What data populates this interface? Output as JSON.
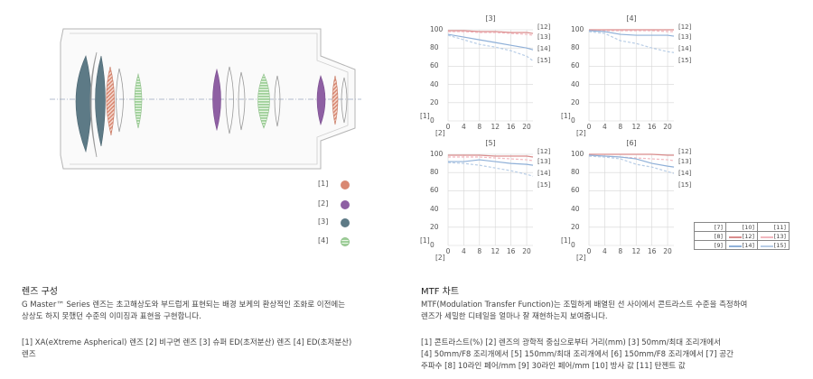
{
  "lens_legend": [
    {
      "label": "[1]",
      "color": "#d98872",
      "icon": "xa-element-swatch"
    },
    {
      "label": "[2]",
      "color": "#8e5fa3",
      "icon": "aspherical-element-swatch"
    },
    {
      "label": "[3]",
      "color": "#5d7a86",
      "icon": "super-ed-element-swatch"
    },
    {
      "label": "[4]",
      "color": "#9fd09a",
      "icon": "ed-element-swatch"
    }
  ],
  "mtf": {
    "y_tick_top": "100",
    "y_ticks": [
      "80",
      "60",
      "40",
      "20",
      "0"
    ],
    "x_ticks": [
      "0",
      "4",
      "8",
      "12",
      "16",
      "20"
    ],
    "y_axis_label": "[1]",
    "x_axis_label": "[2]"
  },
  "chart_data": [
    {
      "type": "line",
      "title": "[3]",
      "x": [
        0,
        4,
        8,
        12,
        16,
        20,
        21.6
      ],
      "xlim": [
        0,
        21.6
      ],
      "ylim": [
        0,
        100
      ],
      "series": [
        {
          "name": "[12]",
          "color": "#d98c8c",
          "dash": "",
          "values": [
            99,
            99,
            98,
            98,
            97,
            97,
            96
          ]
        },
        {
          "name": "[13]",
          "color": "#f2b8bf",
          "dash": "3,2",
          "values": [
            98,
            98,
            97,
            97,
            96,
            95,
            94
          ]
        },
        {
          "name": "[14]",
          "color": "#8fb0d8",
          "dash": "",
          "values": [
            95,
            92,
            89,
            86,
            83,
            80,
            78
          ]
        },
        {
          "name": "[15]",
          "color": "#b8cde6",
          "dash": "3,2",
          "values": [
            94,
            89,
            84,
            81,
            77,
            71,
            66
          ]
        }
      ]
    },
    {
      "type": "line",
      "title": "[4]",
      "x": [
        0,
        4,
        8,
        12,
        16,
        20,
        21.6
      ],
      "xlim": [
        0,
        21.6
      ],
      "ylim": [
        0,
        100
      ],
      "series": [
        {
          "name": "[12]",
          "color": "#d98c8c",
          "dash": "",
          "values": [
            100,
            100,
            100,
            100,
            100,
            100,
            100
          ]
        },
        {
          "name": "[13]",
          "color": "#f2b8bf",
          "dash": "3,2",
          "values": [
            99,
            99,
            99,
            99,
            99,
            98,
            98
          ]
        },
        {
          "name": "[14]",
          "color": "#8fb0d8",
          "dash": "",
          "values": [
            99,
            98,
            95,
            94,
            94,
            94,
            93
          ]
        },
        {
          "name": "[15]",
          "color": "#b8cde6",
          "dash": "3,2",
          "values": [
            98,
            96,
            88,
            85,
            80,
            76,
            75
          ]
        }
      ]
    },
    {
      "type": "line",
      "title": "[5]",
      "x": [
        0,
        4,
        8,
        12,
        16,
        20,
        21.6
      ],
      "xlim": [
        0,
        21.6
      ],
      "ylim": [
        0,
        100
      ],
      "series": [
        {
          "name": "[12]",
          "color": "#d98c8c",
          "dash": "",
          "values": [
            99,
            99,
            99,
            98,
            98,
            98,
            97
          ]
        },
        {
          "name": "[13]",
          "color": "#f2b8bf",
          "dash": "3,2",
          "values": [
            97,
            97,
            97,
            96,
            95,
            94,
            93
          ]
        },
        {
          "name": "[14]",
          "color": "#8fb0d8",
          "dash": "",
          "values": [
            92,
            92,
            94,
            92,
            90,
            89,
            88
          ]
        },
        {
          "name": "[15]",
          "color": "#b8cde6",
          "dash": "3,2",
          "values": [
            91,
            90,
            88,
            85,
            82,
            78,
            76
          ]
        }
      ]
    },
    {
      "type": "line",
      "title": "[6]",
      "x": [
        0,
        4,
        8,
        12,
        16,
        20,
        21.6
      ],
      "xlim": [
        0,
        21.6
      ],
      "ylim": [
        0,
        100
      ],
      "series": [
        {
          "name": "[12]",
          "color": "#d98c8c",
          "dash": "",
          "values": [
            100,
            100,
            100,
            100,
            100,
            99,
            99
          ]
        },
        {
          "name": "[13]",
          "color": "#f2b8bf",
          "dash": "3,2",
          "values": [
            98,
            98,
            97,
            96,
            95,
            94,
            93
          ]
        },
        {
          "name": "[14]",
          "color": "#8fb0d8",
          "dash": "",
          "values": [
            99,
            98,
            97,
            95,
            90,
            87,
            86
          ]
        },
        {
          "name": "[15]",
          "color": "#b8cde6",
          "dash": "3,2",
          "values": [
            98,
            97,
            95,
            89,
            86,
            81,
            79
          ]
        }
      ]
    }
  ],
  "mtf_legend": {
    "header": [
      "[7]",
      "[10]",
      "[11]"
    ],
    "row_8": {
      "label": "[8]",
      "sharp": "[12]",
      "dash": "[13]",
      "sharp_color": "#d98c8c",
      "dash_color": "#f2b8bf"
    },
    "row_9": {
      "label": "[9]",
      "sharp": "[14]",
      "dash": "[15]",
      "sharp_color": "#8fb0d8",
      "dash_color": "#b8cde6"
    }
  },
  "lens_section": {
    "title": "렌즈 구성",
    "description_line1": "G Master™ Series 렌즈는 초고해상도와 부드럽게 표현되는 배경 보케의 환상적인 조화로 이전에는",
    "description_line2": "상상도 하지 못했던 수준의 이미징과 표현을 구현합니다.",
    "legend_line1": "[1] XA(eXtreme Aspherical) 렌즈  [2] 비구면 렌즈  [3] 슈퍼 ED(초저분산) 렌즈  [4] ED(초저분산)",
    "legend_line2": "렌즈"
  },
  "mtf_section": {
    "title": "MTF 차트",
    "description_line1": "MTF(Modulation Transfer Function)는 조밀하게 배열된 선 사이에서 콘트라스트 수준을 측정하여",
    "description_line2": "렌즈가 세밀한 디테일을 얼마나 잘 재현하는지 보여줍니다.",
    "legend_line1": "[1] 콘트라스트(%)  [2] 렌즈의 광학적 중심으로부터 거리(mm)  [3] 50mm/최대 조리개에서",
    "legend_line2": "[4] 50mm/F8 조리개에서   [5] 150mm/최대 조리개에서   [6] 150mm/F8 조리개에서   [7] 공간",
    "legend_line3": "주파수  [8] 10라인 페어/mm  [9] 30라인 페어/mm  [10] 방사 값  [11] 탄젠트 값"
  }
}
